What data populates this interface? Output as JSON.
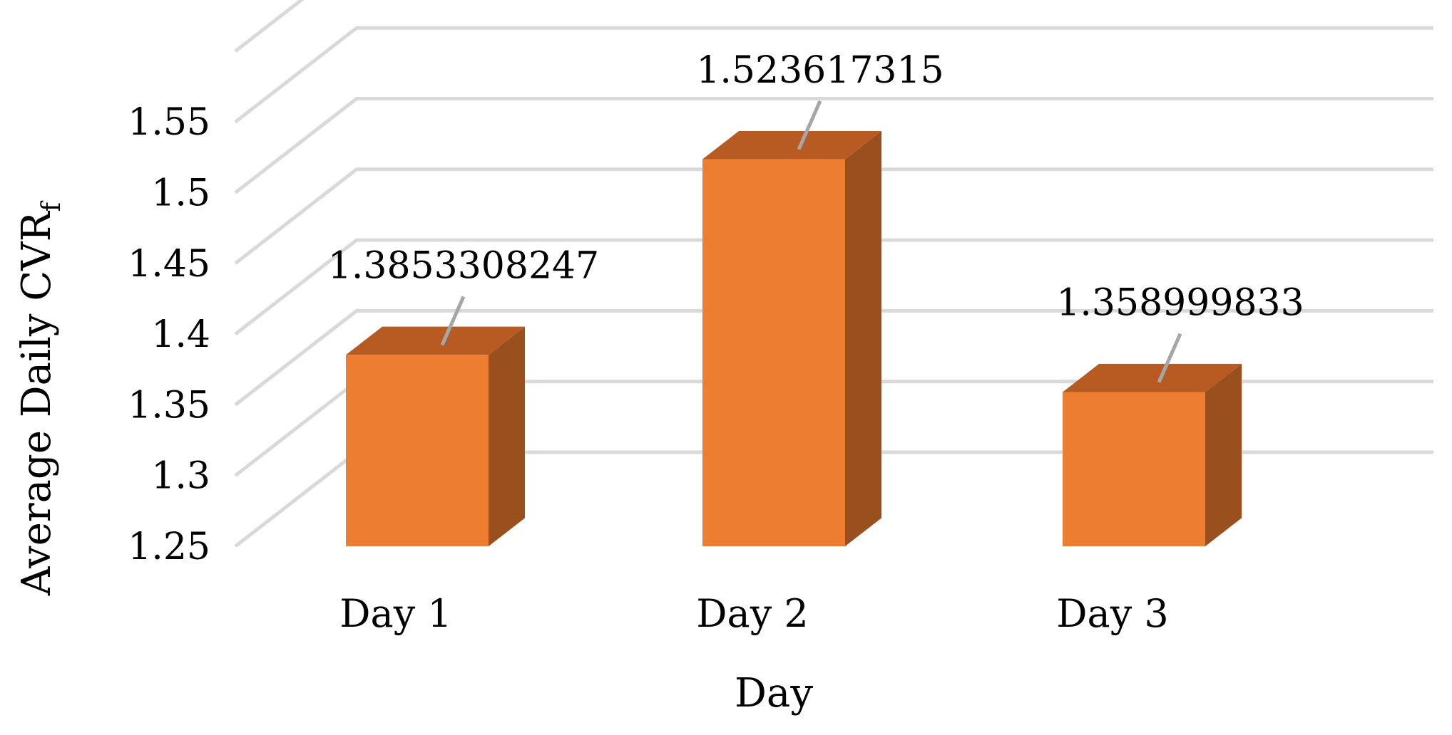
{
  "chart_data": {
    "type": "bar",
    "three_d": true,
    "categories": [
      "Day 1",
      "Day 2",
      "Day 3"
    ],
    "values": [
      1.3853308247,
      1.523617315,
      1.358999833
    ],
    "data_labels": [
      "1.3853308247",
      "1.523617315",
      "1.358999833"
    ],
    "xlabel": "Day",
    "ylabel": "Average Daily CVR",
    "ylabel_subscript": "f",
    "ylim": [
      1.25,
      1.6
    ],
    "yticks": [
      1.25,
      1.3,
      1.35,
      1.4,
      1.45,
      1.5,
      1.55
    ],
    "ytick_labels": [
      "1.25",
      "1.3",
      "1.35",
      "1.4",
      "1.45",
      "1.5",
      "1.55"
    ],
    "grid": true,
    "legend": "none",
    "colors": {
      "bar_front": "#ED7D31",
      "bar_top": "#B85B23",
      "bar_side": "#9A4F1F",
      "gridline": "#D9D9D9",
      "leader_line": "#A6A6A6"
    }
  }
}
